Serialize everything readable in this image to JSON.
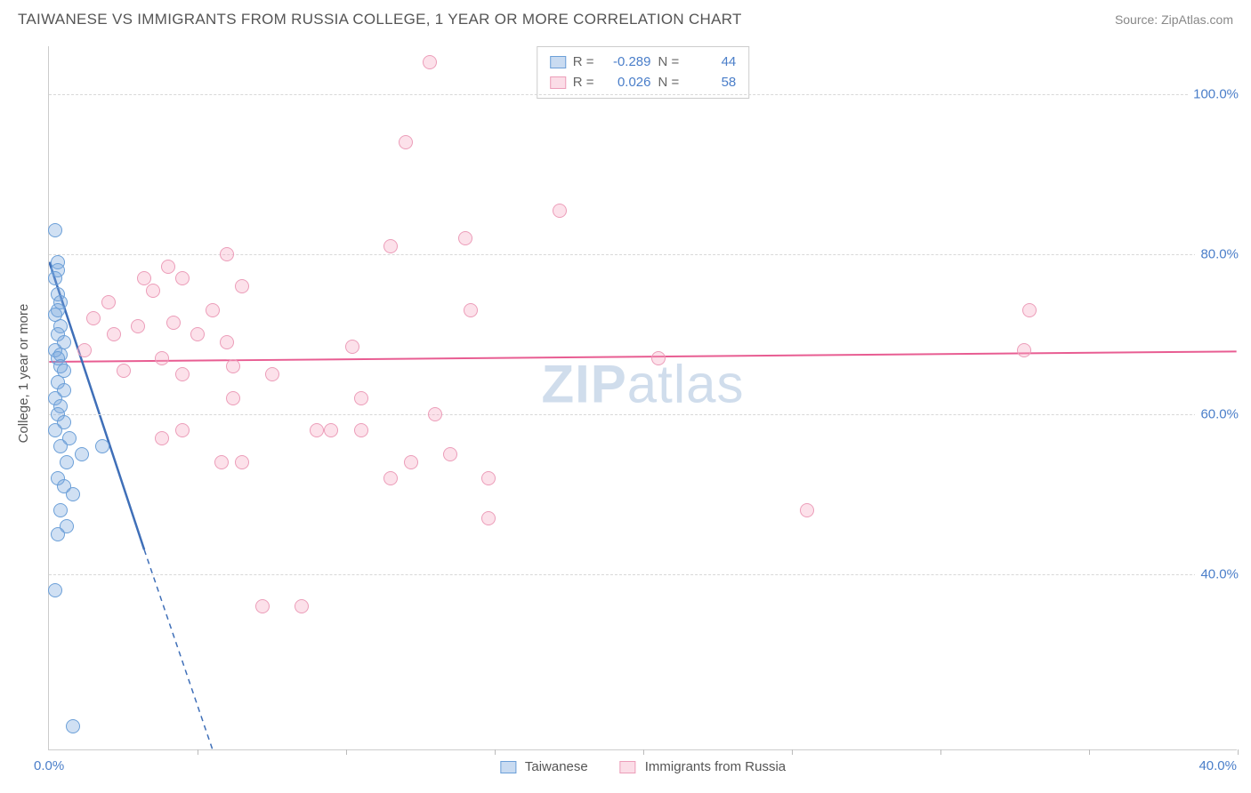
{
  "title": "TAIWANESE VS IMMIGRANTS FROM RUSSIA COLLEGE, 1 YEAR OR MORE CORRELATION CHART",
  "source": "Source: ZipAtlas.com",
  "watermark": {
    "bold": "ZIP",
    "rest": "atlas"
  },
  "ylabel": "College, 1 year or more",
  "chart": {
    "type": "scatter",
    "background_color": "#ffffff",
    "grid_color": "#d8d8d8",
    "border_color": "#cccccc",
    "xlim": [
      0,
      40
    ],
    "ylim": [
      18,
      106
    ],
    "yticks": [
      40,
      60,
      80,
      100
    ],
    "ytick_labels": [
      "40.0%",
      "60.0%",
      "80.0%",
      "100.0%"
    ],
    "xtick_positions": [
      5,
      10,
      15,
      20,
      25,
      30,
      35,
      40
    ],
    "x_origin_label": "0.0%",
    "x_far_label": "40.0%",
    "marker_radius": 8,
    "series": [
      {
        "name": "Taiwanese",
        "color": "#6b9fd8",
        "fill": "rgba(120,165,220,0.35)",
        "R": "-0.289",
        "N": "44",
        "trend": {
          "x1": 0,
          "y1": 79,
          "x2": 3.2,
          "y2": 43,
          "dash_x2": 5.5,
          "dash_y2": 18,
          "stroke": "#3f6fb8",
          "width": 2.5
        },
        "points": [
          [
            0.2,
            83
          ],
          [
            0.3,
            79
          ],
          [
            0.3,
            78
          ],
          [
            0.2,
            77
          ],
          [
            0.3,
            75
          ],
          [
            0.4,
            74
          ],
          [
            0.3,
            73
          ],
          [
            0.2,
            72.5
          ],
          [
            0.4,
            71
          ],
          [
            0.3,
            70
          ],
          [
            0.5,
            69
          ],
          [
            0.2,
            68
          ],
          [
            0.4,
            67.5
          ],
          [
            0.3,
            67
          ],
          [
            0.4,
            66
          ],
          [
            0.5,
            65.5
          ],
          [
            0.3,
            64
          ],
          [
            0.5,
            63
          ],
          [
            0.2,
            62
          ],
          [
            0.4,
            61
          ],
          [
            0.3,
            60
          ],
          [
            0.5,
            59
          ],
          [
            0.2,
            58
          ],
          [
            0.7,
            57
          ],
          [
            0.4,
            56
          ],
          [
            1.1,
            55
          ],
          [
            0.6,
            54
          ],
          [
            1.8,
            56
          ],
          [
            0.3,
            52
          ],
          [
            0.5,
            51
          ],
          [
            0.8,
            50
          ],
          [
            0.4,
            48
          ],
          [
            0.6,
            46
          ],
          [
            0.3,
            45
          ],
          [
            0.2,
            38
          ],
          [
            0.8,
            21
          ]
        ]
      },
      {
        "name": "Immigrants from Russia",
        "color": "#ec6f9e",
        "fill": "rgba(245,170,195,0.35)",
        "R": "0.026",
        "N": "58",
        "trend": {
          "x1": 0,
          "y1": 66.5,
          "x2": 40,
          "y2": 67.8,
          "stroke": "#e85d92",
          "width": 2
        },
        "points": [
          [
            12.8,
            104
          ],
          [
            12,
            94
          ],
          [
            11.5,
            81
          ],
          [
            17.2,
            85.5
          ],
          [
            14,
            82
          ],
          [
            6,
            80
          ],
          [
            4,
            78.5
          ],
          [
            3.2,
            77
          ],
          [
            4.5,
            77
          ],
          [
            6.5,
            76
          ],
          [
            3.5,
            75.5
          ],
          [
            2,
            74
          ],
          [
            5.5,
            73
          ],
          [
            14.2,
            73
          ],
          [
            1.5,
            72
          ],
          [
            4.2,
            71.5
          ],
          [
            3,
            71
          ],
          [
            2.2,
            70
          ],
          [
            5,
            70
          ],
          [
            6,
            69
          ],
          [
            10.2,
            68.5
          ],
          [
            1.2,
            68
          ],
          [
            3.8,
            67
          ],
          [
            6.2,
            66
          ],
          [
            2.5,
            65.5
          ],
          [
            4.5,
            65
          ],
          [
            7.5,
            65
          ],
          [
            20.5,
            67
          ],
          [
            33,
            73
          ],
          [
            32.8,
            68
          ],
          [
            25.5,
            48
          ],
          [
            10.5,
            62
          ],
          [
            9,
            58
          ],
          [
            9.5,
            58
          ],
          [
            10.5,
            58
          ],
          [
            12.2,
            54
          ],
          [
            13.5,
            55
          ],
          [
            11.5,
            52
          ],
          [
            14.8,
            52
          ],
          [
            13,
            60
          ],
          [
            6.5,
            54
          ],
          [
            5.8,
            54
          ],
          [
            4.5,
            58
          ],
          [
            3.8,
            57
          ],
          [
            6.2,
            62
          ],
          [
            14.8,
            47
          ],
          [
            7.2,
            36
          ],
          [
            8.5,
            36
          ]
        ]
      }
    ]
  },
  "legend_top": {
    "label_R": "R =",
    "label_N": "N ="
  },
  "legend_bottom": {
    "items": [
      "Taiwanese",
      "Immigrants from Russia"
    ]
  }
}
